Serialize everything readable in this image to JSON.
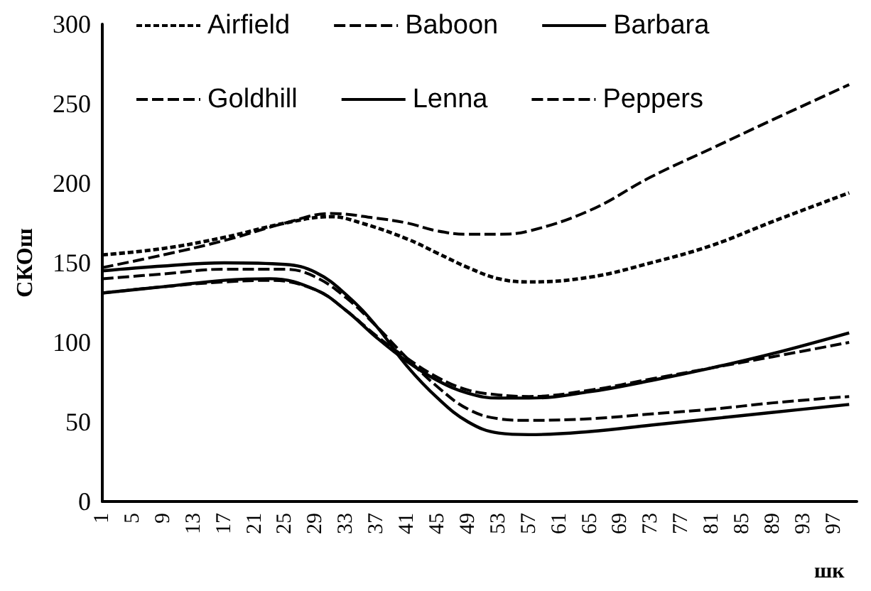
{
  "chart_data": {
    "type": "line",
    "xlabel": "шк",
    "ylabel": "СКОш",
    "xlim": [
      1,
      100
    ],
    "xticks": [
      1,
      5,
      9,
      13,
      17,
      21,
      25,
      29,
      33,
      37,
      41,
      45,
      49,
      53,
      57,
      61,
      65,
      69,
      73,
      77,
      81,
      85,
      89,
      93,
      97
    ],
    "ylim": [
      0,
      300
    ],
    "yticks": [
      0,
      50,
      100,
      150,
      200,
      250,
      300
    ],
    "grid": false,
    "legend": "top",
    "marker": "none",
    "series": [
      {
        "name": "Airfield",
        "color": "#000000",
        "line_style": "dotted",
        "x": [
          1,
          9,
          17,
          25,
          31,
          35,
          41,
          45,
          49,
          53,
          57,
          65,
          73,
          81,
          89,
          99
        ],
        "values": [
          155,
          159,
          166,
          175,
          179,
          175,
          165,
          156,
          147,
          140,
          138,
          141,
          150,
          161,
          176,
          194
        ]
      },
      {
        "name": "Baboon",
        "color": "#000000",
        "line_style": "dashed",
        "x": [
          1,
          9,
          17,
          25,
          31,
          37,
          41,
          45,
          49,
          53,
          57,
          65,
          73,
          81,
          89,
          99
        ],
        "values": [
          147,
          155,
          164,
          175,
          181,
          178,
          175,
          170,
          168,
          168,
          170,
          183,
          204,
          222,
          240,
          262
        ]
      },
      {
        "name": "Barbara",
        "color": "#000000",
        "line_style": "solid",
        "x": [
          1,
          9,
          17,
          23,
          29,
          33,
          37,
          41,
          45,
          49,
          53,
          57,
          65,
          73,
          81,
          89,
          99
        ],
        "values": [
          131,
          135,
          139,
          140,
          133,
          120,
          103,
          88,
          76,
          68,
          65,
          65,
          69,
          76,
          84,
          93,
          106
        ]
      },
      {
        "name": "Goldhill",
        "color": "#000000",
        "line_style": "dashed",
        "x": [
          1,
          9,
          17,
          23,
          29,
          33,
          37,
          41,
          45,
          49,
          53,
          57,
          65,
          73,
          81,
          89,
          99
        ],
        "values": [
          131,
          135,
          138,
          139,
          133,
          120,
          104,
          90,
          78,
          70,
          67,
          66,
          70,
          77,
          84,
          91,
          100
        ]
      },
      {
        "name": "Lenna",
        "color": "#000000",
        "line_style": "solid",
        "x": [
          1,
          9,
          17,
          25,
          29,
          33,
          37,
          41,
          45,
          49,
          53,
          57,
          65,
          73,
          81,
          89,
          99
        ],
        "values": [
          145,
          148,
          150,
          149,
          144,
          130,
          110,
          85,
          65,
          50,
          43,
          42,
          44,
          48,
          52,
          56,
          61
        ]
      },
      {
        "name": "Peppers",
        "color": "#000000",
        "line_style": "dashed",
        "x": [
          1,
          9,
          17,
          25,
          29,
          33,
          37,
          41,
          45,
          49,
          53,
          57,
          65,
          73,
          81,
          89,
          99
        ],
        "values": [
          140,
          143,
          146,
          146,
          141,
          128,
          110,
          90,
          72,
          58,
          52,
          51,
          52,
          55,
          58,
          62,
          66
        ]
      }
    ]
  }
}
